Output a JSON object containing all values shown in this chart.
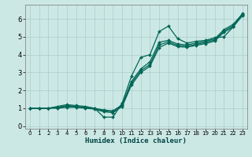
{
  "xlabel": "Humidex (Indice chaleur)",
  "xlim": [
    -0.5,
    23.5
  ],
  "ylim": [
    -0.15,
    6.8
  ],
  "xticks": [
    0,
    1,
    2,
    3,
    4,
    5,
    6,
    7,
    8,
    9,
    10,
    11,
    12,
    13,
    14,
    15,
    16,
    17,
    18,
    19,
    20,
    21,
    22,
    23
  ],
  "yticks": [
    0,
    1,
    2,
    3,
    4,
    5,
    6
  ],
  "bg_color": "#cce8e4",
  "grid_color": "#aacccc",
  "line_color": "#006655",
  "line1_x": [
    0,
    1,
    2,
    3,
    4,
    5,
    6,
    7,
    8,
    9,
    10,
    11,
    12,
    13,
    14,
    15,
    16,
    17,
    18,
    19,
    20,
    21,
    22,
    23
  ],
  "line1_y": [
    1.0,
    1.0,
    1.0,
    1.1,
    1.2,
    1.15,
    1.1,
    1.0,
    0.5,
    0.5,
    1.3,
    2.8,
    3.85,
    4.0,
    5.3,
    5.6,
    4.9,
    4.65,
    4.75,
    4.8,
    4.95,
    5.0,
    5.55,
    6.3
  ],
  "line2_x": [
    0,
    1,
    2,
    3,
    4,
    5,
    6,
    7,
    8,
    9,
    10,
    11,
    12,
    13,
    14,
    15,
    16,
    17,
    18,
    19,
    20,
    21,
    22,
    23
  ],
  "line2_y": [
    1.0,
    1.0,
    1.0,
    1.05,
    1.15,
    1.1,
    1.05,
    1.0,
    0.9,
    0.85,
    1.2,
    2.5,
    3.2,
    3.6,
    4.7,
    4.8,
    4.6,
    4.55,
    4.65,
    4.75,
    4.88,
    5.4,
    5.7,
    6.28
  ],
  "line3_x": [
    0,
    1,
    2,
    3,
    4,
    5,
    6,
    7,
    8,
    9,
    10,
    11,
    12,
    13,
    14,
    15,
    16,
    17,
    18,
    19,
    20,
    21,
    22,
    23
  ],
  "line3_y": [
    1.0,
    1.0,
    1.0,
    1.03,
    1.1,
    1.08,
    1.03,
    0.98,
    0.85,
    0.8,
    1.15,
    2.4,
    3.1,
    3.45,
    4.55,
    4.72,
    4.52,
    4.48,
    4.58,
    4.68,
    4.82,
    5.32,
    5.62,
    6.22
  ],
  "line4_x": [
    0,
    1,
    2,
    3,
    4,
    5,
    6,
    7,
    8,
    9,
    10,
    11,
    12,
    13,
    14,
    15,
    16,
    17,
    18,
    19,
    20,
    21,
    22,
    23
  ],
  "line4_y": [
    1.0,
    1.0,
    1.0,
    1.0,
    1.05,
    1.05,
    1.0,
    0.95,
    0.8,
    0.75,
    1.1,
    2.3,
    3.0,
    3.35,
    4.4,
    4.65,
    4.45,
    4.42,
    4.52,
    4.62,
    4.76,
    5.25,
    5.55,
    6.18
  ]
}
